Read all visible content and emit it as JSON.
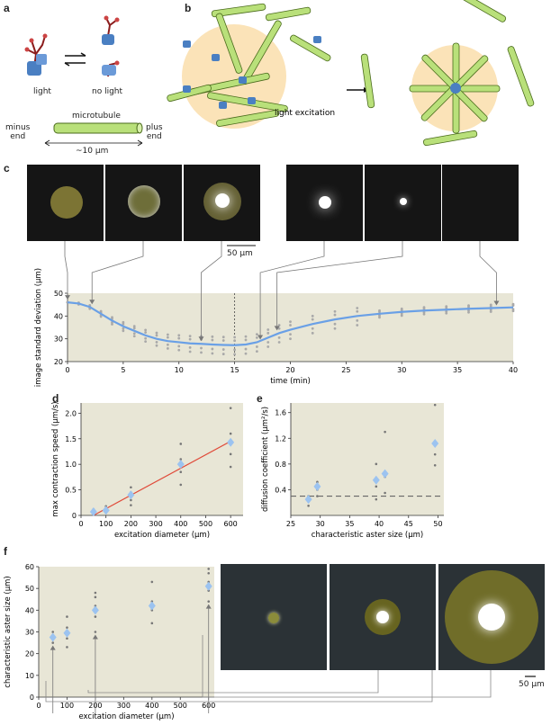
{
  "panels": {
    "a": {
      "letter": "a",
      "state_light": "light",
      "state_no_light": "no light",
      "microtubule_label": "microtubule",
      "minus_end_label": "minus\nend",
      "plus_end_label": "plus\nend",
      "length_label": "~10 µm"
    },
    "b": {
      "letter": "b",
      "light_excitation_label": "light\nexcitation"
    },
    "c": {
      "letter": "c",
      "scale_bar_label": "50 µm",
      "chart_data": {
        "type": "line",
        "xlabel": "time (min)",
        "ylabel": "image standard deviation (µm)",
        "xlim": [
          0,
          40
        ],
        "ylim": [
          20,
          50
        ],
        "x_ticks": [
          0,
          5,
          10,
          15,
          20,
          25,
          30,
          35,
          40
        ],
        "y_ticks": [
          20,
          30,
          40,
          50
        ],
        "light_off_time": 15,
        "snapshot_times": [
          0,
          2.2,
          12,
          17.3,
          18.8,
          38.5
        ],
        "series": [
          {
            "x": [
              0,
              1,
              2,
              3,
              4,
              5,
              6,
              7,
              8,
              9,
              10,
              11,
              12,
              13,
              14,
              15,
              16,
              17,
              18,
              19,
              20,
              22,
              24,
              26,
              28,
              30,
              32,
              34,
              36,
              38,
              40
            ],
            "values": [
              46,
              45.5,
              44,
              41,
              38,
              35.5,
              33.5,
              31.5,
              30,
              29,
              28.5,
              28,
              27.8,
              27.5,
              27.3,
              27.2,
              27.5,
              28.5,
              30.5,
              32.5,
              34,
              36.5,
              38.5,
              40,
              41,
              41.8,
              42.4,
              42.8,
              43.2,
              43.5,
              43.8
            ]
          }
        ]
      }
    },
    "d": {
      "letter": "d",
      "chart_data": {
        "type": "scatter",
        "xlabel": "excitation diameter (µm)",
        "ylabel": "max contraction speed (µm/s)",
        "xlim": [
          0,
          650
        ],
        "ylim": [
          0,
          2.2
        ],
        "x_ticks": [
          0,
          100,
          200,
          300,
          400,
          500,
          600
        ],
        "y_ticks": [
          0,
          0.5,
          1.0,
          1.5,
          2.0
        ],
        "y_tick_labels": [
          "0",
          "0.5",
          "1.0",
          "1.5",
          "2.0"
        ],
        "x": [
          50,
          100,
          200,
          400,
          600
        ],
        "means": [
          0.07,
          0.1,
          0.4,
          1.0,
          1.43
        ],
        "raw": [
          [
            0.02,
            0.05,
            0.09,
            0.12
          ],
          [
            0.05,
            0.08,
            0.12,
            0.18
          ],
          [
            0.2,
            0.3,
            0.45,
            0.55
          ],
          [
            0.6,
            0.85,
            1.1,
            1.4
          ],
          [
            0.95,
            1.2,
            1.6,
            2.1
          ]
        ],
        "fit": {
          "x": [
            50,
            600
          ],
          "y": [
            0.0,
            1.45
          ]
        }
      }
    },
    "e": {
      "letter": "e",
      "chart_data": {
        "type": "scatter",
        "xlabel": "characteristic aster size (µm)",
        "ylabel": "diffusion coefficient (µm²/s)",
        "xlim": [
          25,
          51
        ],
        "ylim": [
          0,
          1.75
        ],
        "x_ticks": [
          25,
          30,
          35,
          40,
          45,
          50
        ],
        "y_ticks": [
          0.4,
          0.8,
          1.2,
          1.6
        ],
        "y_tick_labels": [
          "0.4",
          "0.8",
          "1.2",
          "1.6"
        ],
        "x": [
          28,
          29.5,
          39.5,
          41,
          49.5
        ],
        "means": [
          0.25,
          0.45,
          0.55,
          0.65,
          1.12
        ],
        "raw": [
          [
            0.15,
            0.22,
            0.3
          ],
          [
            0.3,
            0.4,
            0.52
          ],
          [
            0.25,
            0.45,
            0.8
          ],
          [
            0.35,
            0.6,
            1.3
          ],
          [
            0.78,
            0.95,
            1.72
          ]
        ],
        "reference_line": 0.3
      }
    },
    "f": {
      "letter": "f",
      "scale_bar_label": "50 µm",
      "chart_data": {
        "type": "scatter",
        "xlabel": "excitation diameter (µm)",
        "ylabel": "characteristic aster size (µm)",
        "xlim": [
          0,
          620
        ],
        "ylim": [
          0,
          60
        ],
        "x_ticks": [
          0,
          100,
          200,
          300,
          400,
          500,
          600
        ],
        "y_ticks": [
          0,
          10,
          20,
          30,
          40,
          50,
          60
        ],
        "x": [
          50,
          100,
          200,
          400,
          600
        ],
        "means": [
          27.5,
          29.5,
          40,
          42,
          51
        ],
        "raw": [
          [
            25,
            27,
            30
          ],
          [
            23,
            27,
            32,
            37
          ],
          [
            30,
            37,
            42,
            46,
            48
          ],
          [
            34,
            40,
            44,
            53
          ],
          [
            44,
            49,
            53,
            57,
            59
          ]
        ]
      }
    }
  }
}
